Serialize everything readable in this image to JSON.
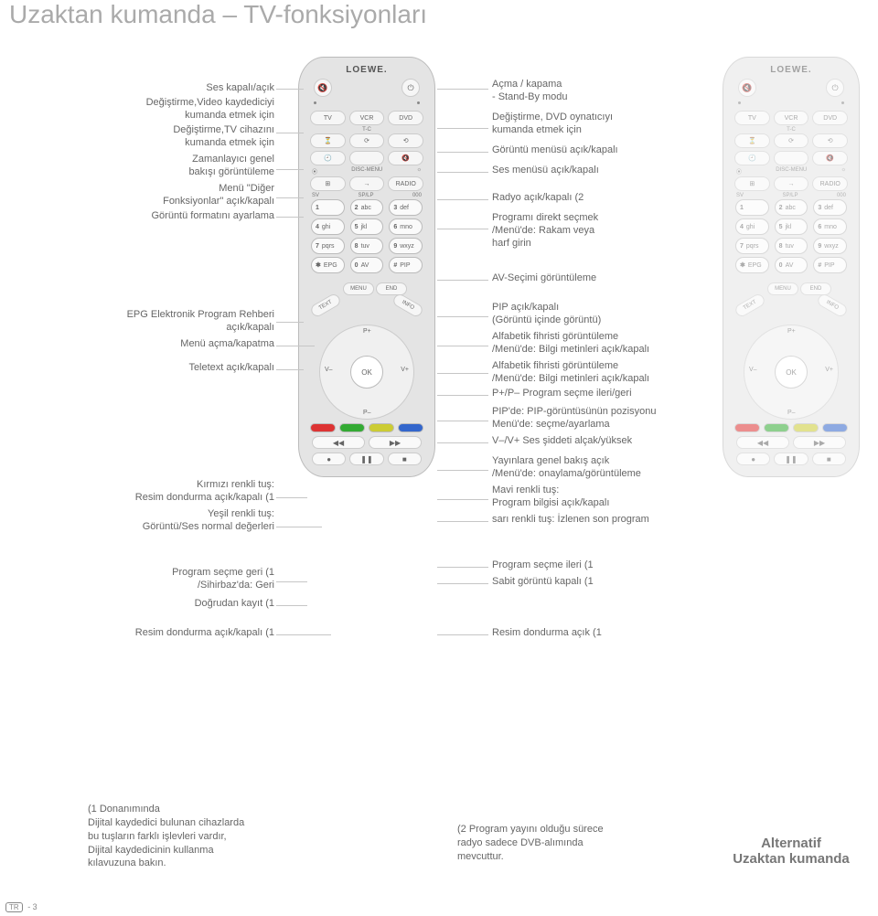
{
  "page": {
    "title": "Uzaktan kumanda – TV-fonksiyonları",
    "footer_code": "TR",
    "footer_page": "- 3"
  },
  "remote": {
    "brand": "LOEWE.",
    "top_buttons": {
      "mute": "🔇",
      "power": "⏻"
    },
    "device_row": [
      "TV",
      "VCR",
      "DVD"
    ],
    "row2_labels": [
      "",
      "T-C",
      ""
    ],
    "row2_icons": [
      "⏳",
      "⟳",
      "⟲"
    ],
    "row3_icons": [
      "🕘",
      "",
      "🔇"
    ],
    "row4_top_labels": [
      "⦿",
      "DISC-MENU",
      "☼"
    ],
    "row4_icons": [
      "⊞",
      "→",
      "RADIO"
    ],
    "row4_bottom_labels": [
      "SV",
      "SP/LP",
      "000"
    ],
    "keypad": [
      [
        "1",
        ""
      ],
      [
        "2",
        "abc"
      ],
      [
        "3",
        "def"
      ],
      [
        "4",
        "ghi"
      ],
      [
        "5",
        "jkl"
      ],
      [
        "6",
        "mno"
      ],
      [
        "7",
        "pqrs"
      ],
      [
        "8",
        "tuv"
      ],
      [
        "9",
        "wxyz"
      ],
      [
        "✱",
        "EPG"
      ],
      [
        "0",
        "AV"
      ],
      [
        "#",
        "PIP"
      ]
    ],
    "menu_buttons": {
      "text": "TEXT",
      "menu": "MENU",
      "end": "END",
      "info": "INFO"
    },
    "wheel": {
      "ok": "OK",
      "pplus": "P+",
      "pminus": "P–",
      "vminus": "V–",
      "vplus": "V+"
    },
    "colors": [
      "#d33",
      "#3a3",
      "#cc3",
      "#36c"
    ],
    "transport": [
      "◀◀",
      "▶▶"
    ],
    "rec": [
      "●",
      "❚❚",
      "■"
    ]
  },
  "left_labels": {
    "g1": "Ses kapalı/açık",
    "g2": "Değiştirme,Video kaydediciyi\nkumanda etmek için",
    "g3": "Değiştirme,TV cihazını\nkumanda etmek için",
    "g4": "Zamanlayıcı genel\nbakışı görüntüleme",
    "g5": "Menü \"Diğer\nFonksiyonlar\" açık/kapalı",
    "g6": "Görüntü formatını ayarlama",
    "g7": "EPG Elektronik Program Rehberi\naçık/kapalı",
    "g8": "Menü açma/kapatma",
    "g9": "Teletext açık/kapalı",
    "g10": "Kırmızı renkli tuş:\nResim dondurma açık/kapalı (1",
    "g11": "Yeşil renkli tuş:\nGörüntü/Ses normal değerleri",
    "g12": "Program seçme geri (1\n/Sihirbaz'da: Geri",
    "g13": "Doğrudan kayıt (1",
    "g14": "Resim dondurma açık/kapalı (1"
  },
  "right_labels": {
    "g1": "Açma / kapama\n- Stand-By modu",
    "g2": "Değiştirme, DVD oynatıcıyı\nkumanda etmek için",
    "g3": "Görüntü menüsü açık/kapalı",
    "g4": "Ses menüsü açık/kapalı",
    "g5": "Radyo açık/kapalı (2",
    "g6": "Programı direkt seçmek\n/Menü'de: Rakam veya\nharf girin",
    "g7": "AV-Seçimi görüntüleme",
    "g8": "PIP açık/kapalı\n(Görüntü içinde görüntü)",
    "g9": "Alfabetik fihristi görüntüleme\n/Menü'de: Bilgi metinleri açık/kapalı",
    "g10": "Alfabetik fihristi görüntüleme\n/Menü'de: Bilgi metinleri açık/kapalı",
    "g11": "P+/P– Program seçme ileri/geri",
    "g12": "PIP'de: PIP-görüntüsünün pozisyonu\nMenü'de: seçme/ayarlama",
    "g13": "V–/V+ Ses şiddeti alçak/yüksek",
    "g14": "Yayınlara genel bakış açık\n/Menü'de: onaylama/görüntüleme",
    "g15": "Mavi renkli tuş:\nProgram bilgisi açık/kapalı",
    "g16": "sarı renkli tuş: İzlenen son program",
    "g17": "Program seçme ileri (1",
    "g18": "Sabit görüntü kapalı (1",
    "g19": "Resim dondurma açık (1"
  },
  "footnotes": {
    "f1": "(1 Donanımında\nDijital kaydedici bulunan cihazlarda\nbu tuşların farklı işlevleri vardır,\nDijital kaydedicinin kullanma\nkılavuzuna bakın.",
    "f2": "(2 Program yayını olduğu sürece\nradyo sadece DVB-alımında\nmevcuttur.",
    "alt": "Alternatif\nUzaktan kumanda"
  }
}
